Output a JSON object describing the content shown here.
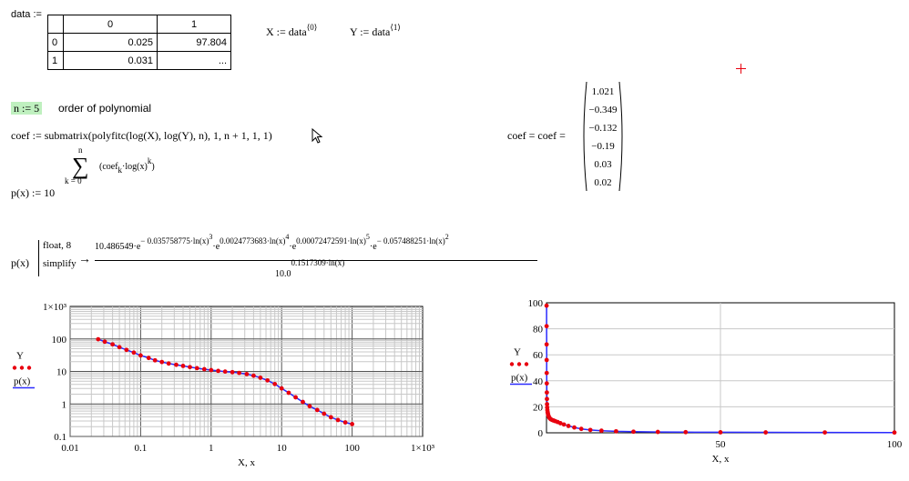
{
  "data_table": {
    "label": "data :=",
    "col_headers": [
      "0",
      "1"
    ],
    "rows": [
      {
        "index": "0",
        "c0": "0.025",
        "c1": "97.804"
      },
      {
        "index": "1",
        "c0": "0.031",
        "c1": "..."
      }
    ]
  },
  "defs": {
    "x_def": "X := data",
    "x_sup": "⟨0⟩",
    "y_def": "Y := data",
    "y_sup": "⟨1⟩",
    "n_def": "n := 5",
    "n_comment": "order of polynomial",
    "coef_def": "coef := submatrix(polyfitc(log(X), log(Y), n), 1, n + 1, 1, 1)",
    "coef_eval": "coef = coef =",
    "coef_values": [
      "1.021",
      "−0.349",
      "−0.132",
      "−0.19",
      "0.03",
      "0.02"
    ],
    "p_def": "p(x) := 10",
    "sum_upper": "n",
    "sum_lower": "k = 0",
    "sum_body": "(coef",
    "sum_body_sub": "k",
    "sum_body_rest": "·log(x)",
    "sum_body_sup": "k",
    "sum_body_close": ")"
  },
  "symbolic": {
    "lhs": "p(x)",
    "kw1": "float, 8",
    "kw2": "simplify",
    "arrow": "→",
    "numerator": "10.486549·e",
    "t1": "− 0.035758775·ln(x)",
    "t1_exp": "3",
    "t2": "·e",
    "t2_exp": "0.0024773683·ln(x)",
    "t2_exp2": "4",
    "t3": "·e",
    "t3_exp": "0.00072472591·ln(x)",
    "t3_exp2": "5",
    "t4": "·e",
    "t4_exp": "− 0.057488251·ln(x)",
    "t4_exp2": "2",
    "denominator": "10.0",
    "denominator_exp": "0.1517309·ln(x)"
  },
  "chart_data": [
    {
      "type": "scatter",
      "scale": "log-log",
      "xlabel": "X, x",
      "ylabel_series": [
        "Y",
        "p(x)"
      ],
      "xlim": [
        0.01,
        1000
      ],
      "ylim": [
        0.1,
        1000
      ],
      "x_ticks": [
        "0.01",
        "0.1",
        "1",
        "10",
        "100",
        "1×10³"
      ],
      "y_ticks": [
        "0.1",
        "1",
        "10",
        "100",
        "1×10³"
      ],
      "grid": true,
      "series": [
        {
          "name": "Y",
          "style": "dots",
          "color": "#e8000e",
          "x": [
            0.025,
            0.031,
            0.04,
            0.05,
            0.063,
            0.08,
            0.1,
            0.13,
            0.16,
            0.2,
            0.25,
            0.32,
            0.4,
            0.5,
            0.63,
            0.8,
            1.0,
            1.26,
            1.58,
            2.0,
            2.5,
            3.2,
            4.0,
            5.0,
            6.3,
            8.0,
            10,
            12.6,
            15.8,
            20,
            25,
            32,
            40,
            50,
            63,
            80,
            100
          ],
          "y": [
            97.8,
            82,
            68,
            56,
            46,
            38,
            31,
            26,
            22,
            19.5,
            17.5,
            16,
            14.8,
            13.6,
            12.6,
            11.7,
            11,
            10.4,
            9.9,
            9.5,
            9.0,
            8.3,
            7.4,
            6.4,
            5.3,
            4.1,
            3.0,
            2.2,
            1.6,
            1.15,
            0.85,
            0.65,
            0.5,
            0.39,
            0.32,
            0.27,
            0.24
          ]
        },
        {
          "name": "p(x)",
          "style": "line",
          "color": "#2a2aff",
          "x": [
            0.025,
            0.031,
            0.04,
            0.05,
            0.063,
            0.08,
            0.1,
            0.13,
            0.16,
            0.2,
            0.25,
            0.32,
            0.4,
            0.5,
            0.63,
            0.8,
            1.0,
            1.26,
            1.58,
            2.0,
            2.5,
            3.2,
            4.0,
            5.0,
            6.3,
            8.0,
            10,
            12.6,
            15.8,
            20,
            25,
            32,
            40,
            50,
            63,
            80,
            100
          ],
          "y": [
            97.8,
            82,
            68,
            56,
            46,
            38,
            31,
            26,
            22,
            19.5,
            17.5,
            16,
            14.8,
            13.6,
            12.6,
            11.7,
            11,
            10.4,
            9.9,
            9.5,
            9.0,
            8.3,
            7.4,
            6.4,
            5.3,
            4.1,
            3.0,
            2.2,
            1.6,
            1.15,
            0.85,
            0.65,
            0.5,
            0.39,
            0.32,
            0.27,
            0.24
          ]
        }
      ]
    },
    {
      "type": "scatter",
      "scale": "linear",
      "xlabel": "X, x",
      "ylabel_series": [
        "Y",
        "p(x)"
      ],
      "xlim": [
        0,
        100
      ],
      "ylim": [
        0,
        100
      ],
      "x_ticks": [
        "0",
        "50",
        "100"
      ],
      "y_ticks": [
        "0",
        "20",
        "40",
        "60",
        "80",
        "100"
      ],
      "grid": true,
      "series": [
        {
          "name": "Y",
          "style": "dots",
          "color": "#e8000e",
          "x": [
            0.025,
            0.031,
            0.04,
            0.05,
            0.063,
            0.08,
            0.1,
            0.13,
            0.16,
            0.2,
            0.25,
            0.32,
            0.4,
            0.5,
            0.63,
            0.8,
            1.0,
            1.26,
            1.58,
            2.0,
            2.5,
            3.2,
            4.0,
            5.0,
            6.3,
            8.0,
            10,
            12.6,
            15.8,
            20,
            25,
            32,
            40,
            50,
            63,
            80,
            100
          ],
          "y": [
            97.8,
            82,
            68,
            56,
            46,
            38,
            31,
            26,
            22,
            19.5,
            17.5,
            16,
            14.8,
            13.6,
            12.6,
            11.7,
            11,
            10.4,
            9.9,
            9.5,
            9.0,
            8.3,
            7.4,
            6.4,
            5.3,
            4.1,
            3.0,
            2.2,
            1.6,
            1.15,
            0.85,
            0.65,
            0.5,
            0.39,
            0.32,
            0.27,
            0.24
          ]
        },
        {
          "name": "p(x)",
          "style": "line",
          "color": "#2a2aff",
          "x": [
            0.025,
            0.031,
            0.04,
            0.05,
            0.063,
            0.08,
            0.1,
            0.13,
            0.16,
            0.2,
            0.25,
            0.32,
            0.4,
            0.5,
            0.63,
            0.8,
            1.0,
            1.26,
            1.58,
            2.0,
            2.5,
            3.2,
            4.0,
            5.0,
            6.3,
            8.0,
            10,
            12.6,
            15.8,
            20,
            25,
            32,
            40,
            50,
            63,
            80,
            100
          ],
          "y": [
            97.8,
            82,
            68,
            56,
            46,
            38,
            31,
            26,
            22,
            19.5,
            17.5,
            16,
            14.8,
            13.6,
            12.6,
            11.7,
            11,
            10.4,
            9.9,
            9.5,
            9.0,
            8.3,
            7.4,
            6.4,
            5.3,
            4.1,
            3.0,
            2.2,
            1.6,
            1.15,
            0.85,
            0.65,
            0.5,
            0.39,
            0.32,
            0.27,
            0.24
          ]
        }
      ]
    }
  ],
  "colors": {
    "region_highlight": "#bff0bf",
    "crosshair": "#e8000e",
    "dots": "#e8000e",
    "line": "#2a2aff"
  },
  "icons": {
    "cursor": "mouse-pointer-icon",
    "crosshair": "crosshair-icon"
  }
}
